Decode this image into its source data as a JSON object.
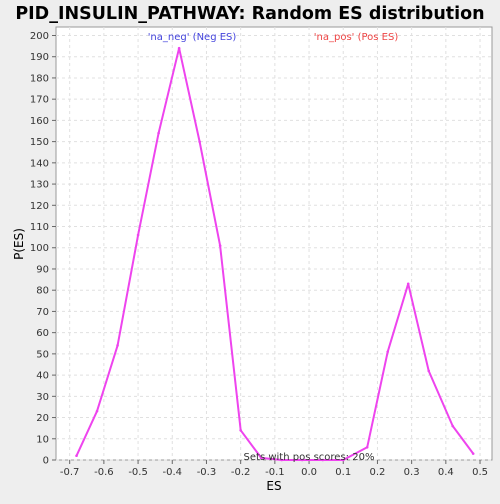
{
  "chart_data": {
    "type": "line",
    "title": "PID_INSULIN_PATHWAY: Random ES distribution",
    "xlabel": "ES",
    "ylabel": "P(ES)",
    "xlim": [
      -0.74,
      0.535
    ],
    "ylim": [
      0,
      204
    ],
    "x_ticks": [
      -0.7,
      -0.6,
      -0.5,
      -0.4,
      -0.3,
      -0.2,
      -0.1,
      0.0,
      0.1,
      0.2,
      0.3,
      0.4,
      0.5
    ],
    "x_tick_labels": [
      "-0.7",
      "-0.6",
      "-0.5",
      "-0.4",
      "-0.3",
      "-0.2",
      "-0.1",
      "0.0",
      "0.1",
      "0.2",
      "0.3",
      "0.4",
      "0.5"
    ],
    "y_ticks": [
      0,
      10,
      20,
      30,
      40,
      50,
      60,
      70,
      80,
      90,
      100,
      110,
      120,
      130,
      140,
      150,
      160,
      170,
      180,
      190,
      200
    ],
    "y_tick_labels": [
      "0",
      "10",
      "20",
      "30",
      "40",
      "50",
      "60",
      "70",
      "80",
      "90",
      "100",
      "110",
      "120",
      "130",
      "140",
      "150",
      "160",
      "170",
      "180",
      "190",
      "200"
    ],
    "grid": true,
    "series": [
      {
        "name": "Random ES distribution",
        "color": "#ee44ee",
        "x": [
          -0.68,
          -0.62,
          -0.56,
          -0.5,
          -0.44,
          -0.38,
          -0.32,
          -0.26,
          -0.2,
          -0.14,
          -0.08,
          -0.02,
          0.04,
          0.1,
          0.17,
          0.23,
          0.29,
          0.35,
          0.42,
          0.48
        ],
        "y": [
          2,
          23,
          54,
          106,
          154,
          194,
          150,
          101,
          14,
          1,
          0,
          0,
          0,
          0,
          6,
          51,
          83,
          42,
          16,
          3
        ]
      }
    ],
    "annotations": {
      "neg_label": "'na_neg' (Neg ES)",
      "pos_label": "'na_pos' (Pos ES)",
      "neg_color": "#4444dd",
      "pos_color": "#ee4444",
      "footer": "Sets with pos scores: 20%"
    }
  }
}
